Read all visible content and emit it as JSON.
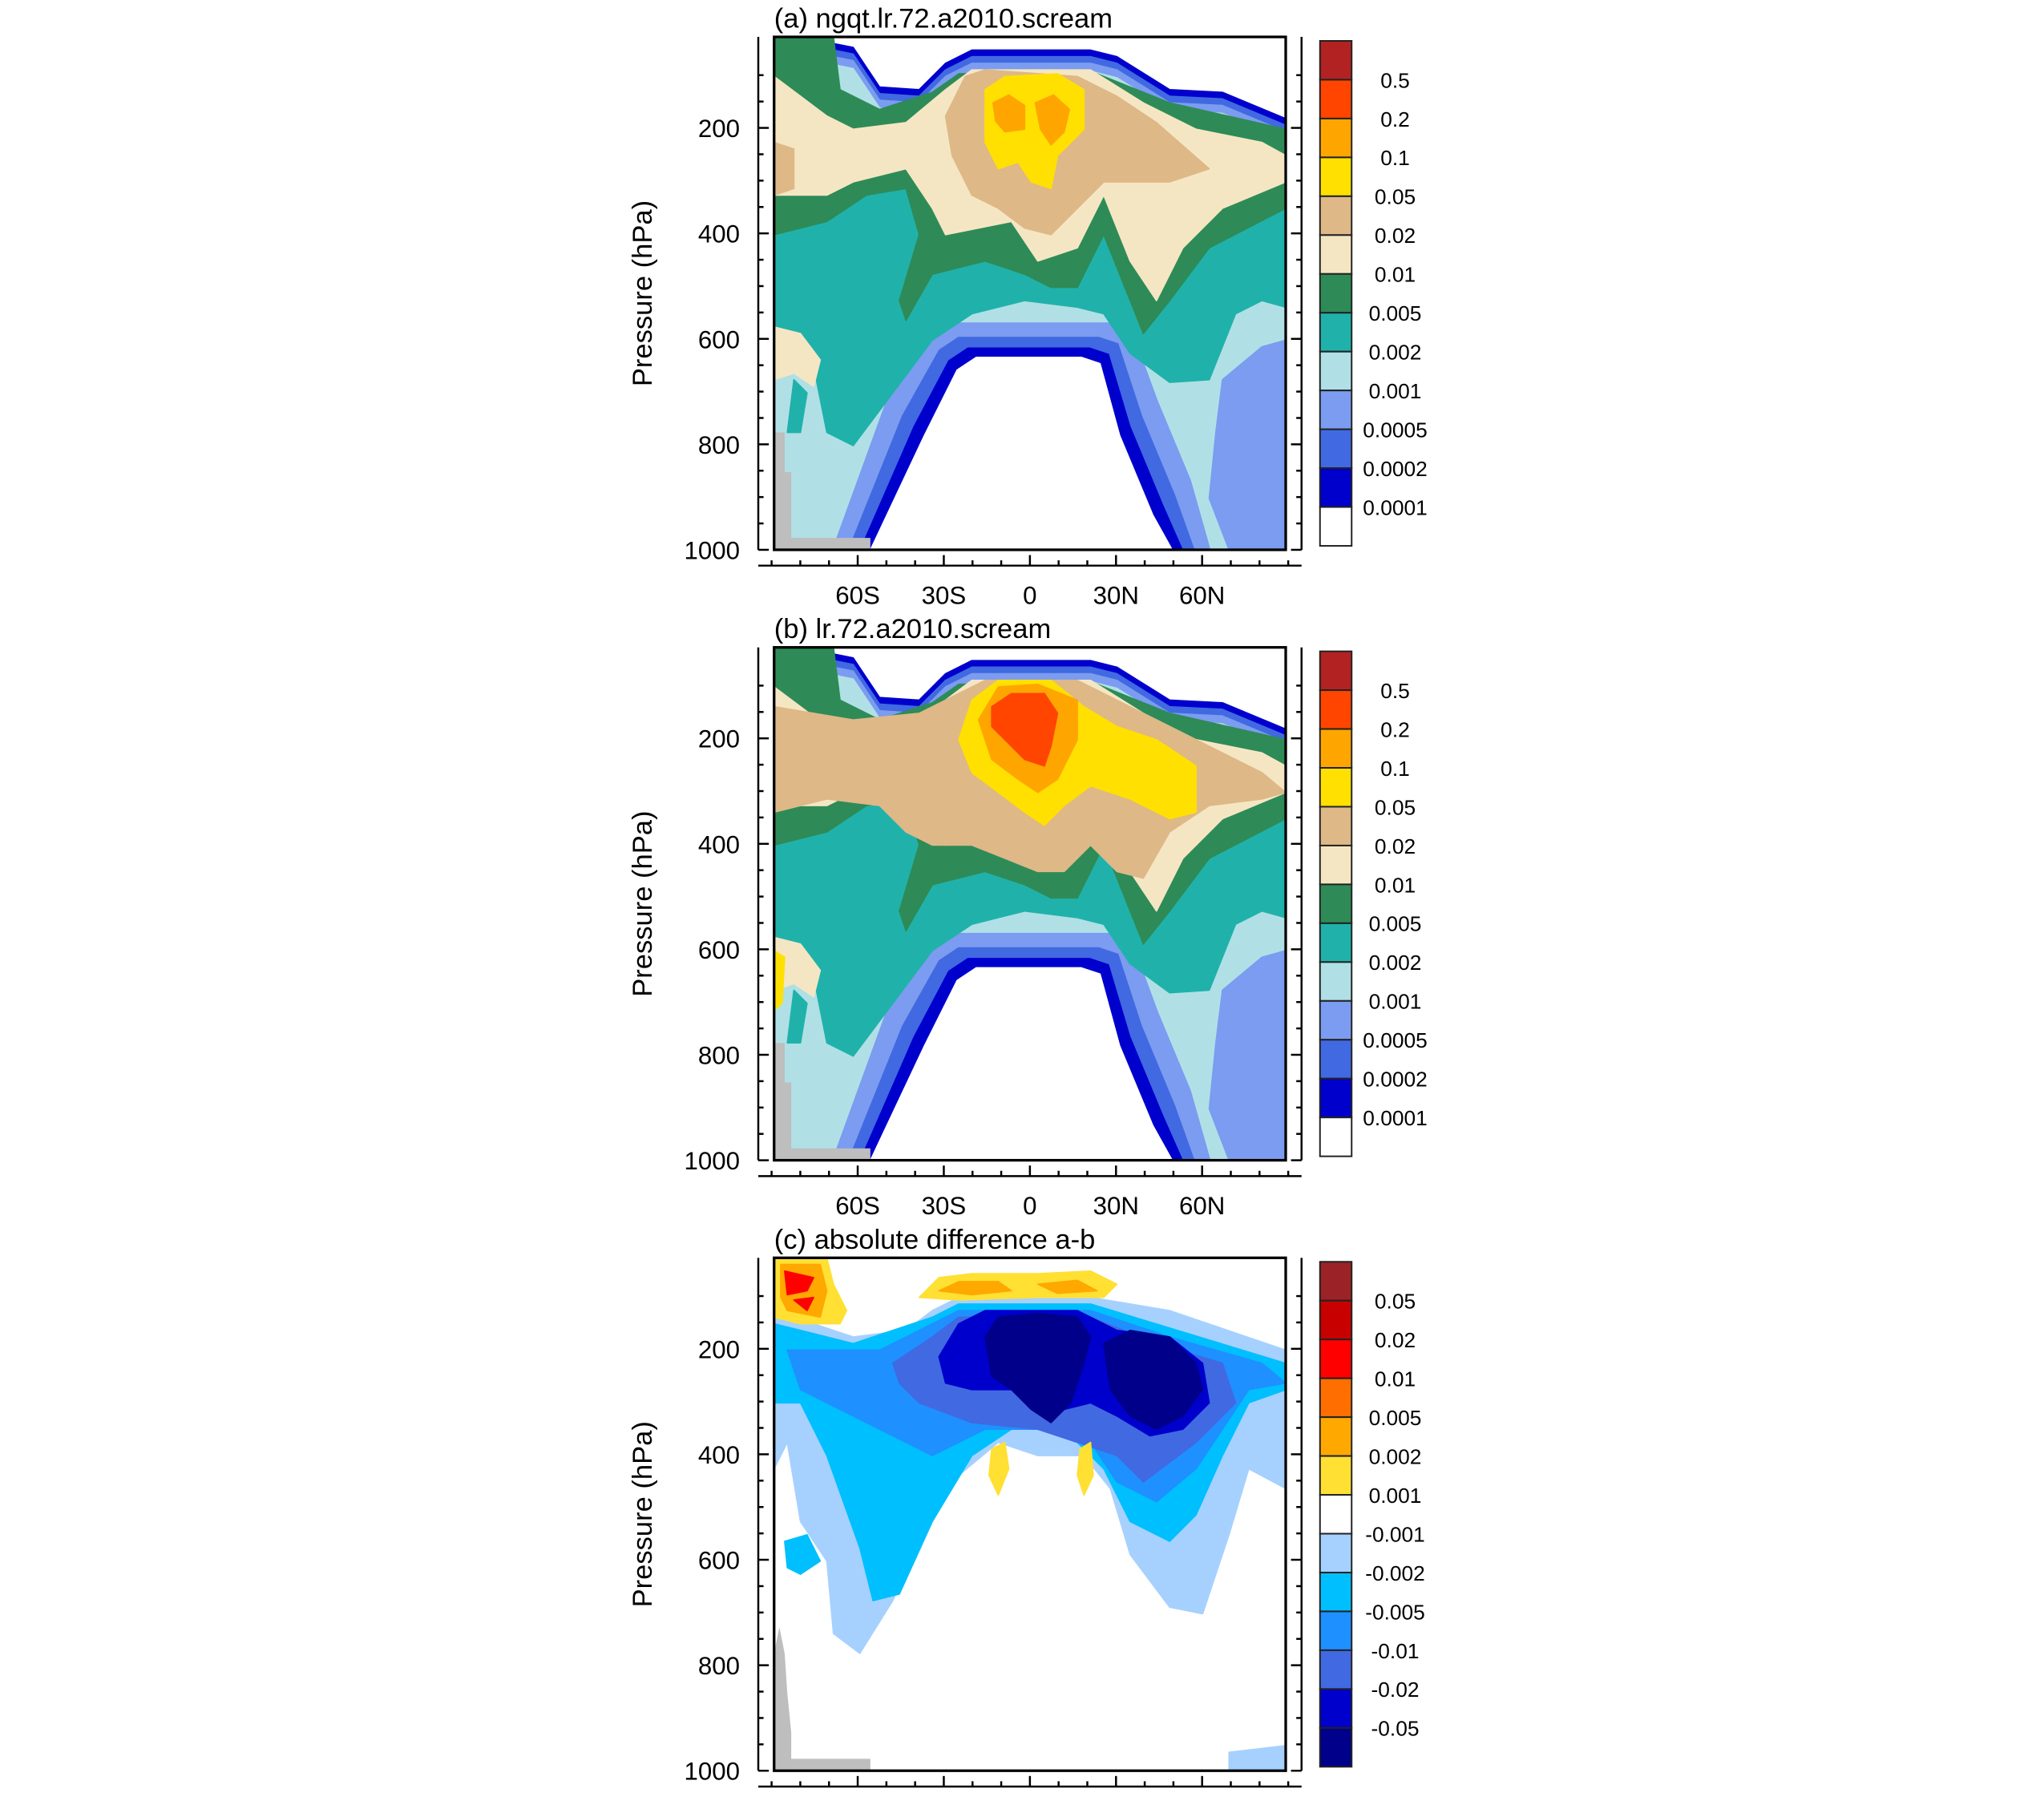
{
  "chart_data": [
    {
      "type": "contour",
      "title": "(a) ngqt.lr.72.a2010.scream",
      "xlabel": "",
      "ylabel": "Pressure (hPa)",
      "x_ticks": [
        "60S",
        "30S",
        "0",
        "30N",
        "60N"
      ],
      "x_tick_values": [
        -60,
        -30,
        0,
        30,
        60
      ],
      "xlim": [
        -90,
        88
      ],
      "y_ticks": [
        "200",
        "400",
        "600",
        "800",
        "1000"
      ],
      "y_tick_values": [
        200,
        400,
        600,
        800,
        1000
      ],
      "ylim": [
        1000,
        27
      ],
      "levels": [
        "0.5",
        "0.2",
        "0.1",
        "0.05",
        "0.02",
        "0.01",
        "0.005",
        "0.002",
        "0.001",
        "0.0005",
        "0.0002",
        "0.0001"
      ],
      "colors": [
        "#B22222",
        "#FF4500",
        "#FFA500",
        "#FFE000",
        "#DEB887",
        "#F5E6C3",
        "#2E8B57",
        "#20B2AA",
        "#B0E0E6",
        "#7B9CF0",
        "#4169E1",
        "#0000CD",
        "#FFFFFF"
      ]
    },
    {
      "type": "contour",
      "title": "(b) lr.72.a2010.scream",
      "xlabel": "",
      "ylabel": "Pressure (hPa)",
      "x_ticks": [
        "60S",
        "30S",
        "0",
        "30N",
        "60N"
      ],
      "x_tick_values": [
        -60,
        -30,
        0,
        30,
        60
      ],
      "xlim": [
        -90,
        88
      ],
      "y_ticks": [
        "200",
        "400",
        "600",
        "800",
        "1000"
      ],
      "y_tick_values": [
        200,
        400,
        600,
        800,
        1000
      ],
      "ylim": [
        1000,
        27
      ],
      "levels": [
        "0.5",
        "0.2",
        "0.1",
        "0.05",
        "0.02",
        "0.01",
        "0.005",
        "0.002",
        "0.001",
        "0.0005",
        "0.0002",
        "0.0001"
      ],
      "colors": [
        "#B22222",
        "#FF4500",
        "#FFA500",
        "#FFE000",
        "#DEB887",
        "#F5E6C3",
        "#2E8B57",
        "#20B2AA",
        "#B0E0E6",
        "#7B9CF0",
        "#4169E1",
        "#0000CD",
        "#FFFFFF"
      ]
    },
    {
      "type": "contour",
      "title": "(c) absolute difference a-b",
      "xlabel": "",
      "ylabel": "Pressure (hPa)",
      "x_ticks": [
        "60S",
        "30S",
        "0",
        "30N",
        "60N"
      ],
      "x_tick_values": [
        -60,
        -30,
        0,
        30,
        60
      ],
      "xlim": [
        -90,
        88
      ],
      "y_ticks": [
        "200",
        "400",
        "600",
        "800",
        "1000"
      ],
      "y_tick_values": [
        200,
        400,
        600,
        800,
        1000
      ],
      "ylim": [
        1000,
        27
      ],
      "levels": [
        "0.05",
        "0.02",
        "0.01",
        "0.005",
        "0.002",
        "0.001",
        "-0.001",
        "-0.002",
        "-0.005",
        "-0.01",
        "-0.02",
        "-0.05"
      ],
      "colors": [
        "#9B2226",
        "#C80000",
        "#FF0000",
        "#FF6E00",
        "#FFA800",
        "#FFE033",
        "#FFFFFF",
        "#A6D1FF",
        "#00BFFF",
        "#1E90FF",
        "#4169E1",
        "#0000CD",
        "#00008B"
      ]
    }
  ],
  "topography_color": "#BEBEBE"
}
